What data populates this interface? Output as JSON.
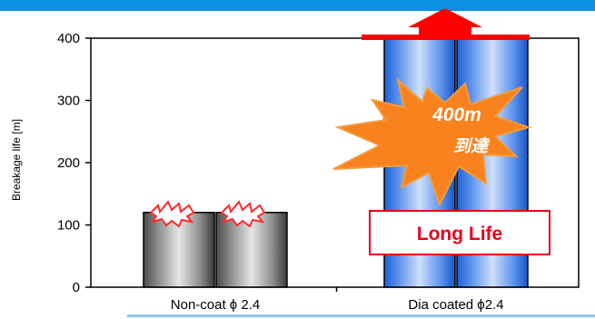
{
  "chart_data": {
    "type": "bar",
    "ylabel": "Breakage life [m]",
    "ylim": [
      0,
      400
    ],
    "yticks": [
      0,
      100,
      200,
      300,
      400
    ],
    "categories": [
      "Non-coat ϕ 2.4",
      "Dia coated ϕ2.4"
    ],
    "bars": [
      {
        "category_index": 0,
        "value": 120
      },
      {
        "category_index": 0,
        "value": 120
      },
      {
        "category_index": 1,
        "value": 400
      },
      {
        "category_index": 1,
        "value": 400
      }
    ],
    "annotations": {
      "burst_value": "400m",
      "burst_text": "到達",
      "badge": "Long Life"
    }
  },
  "colors": {
    "top_band": "#0b8fe0",
    "bottom_line": "#8ec6ee",
    "arrow": "#ff0000",
    "burst_fill": "#f7821e",
    "badge_border": "#e8001c",
    "coated_bar": "#3d7ae0",
    "noncoat_bar": "#7a7a7a"
  }
}
